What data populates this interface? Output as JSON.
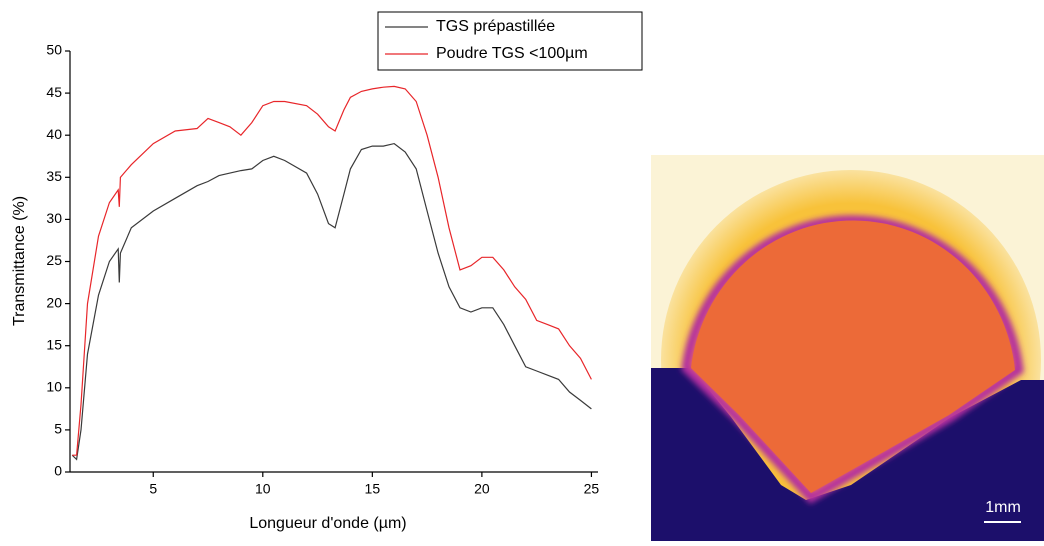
{
  "chart_data": {
    "type": "line",
    "x_label": "Longueur d'onde (µm)",
    "y_label": "Transmittance (%)",
    "x": [
      1.3,
      1.5,
      1.7,
      2.0,
      2.5,
      3.0,
      3.4,
      3.45,
      3.5,
      4.0,
      5.0,
      6.0,
      7.0,
      7.5,
      8.0,
      8.5,
      9.0,
      9.5,
      10.0,
      10.5,
      11.0,
      12.0,
      12.5,
      13.0,
      13.3,
      13.7,
      14.0,
      14.5,
      15.0,
      15.5,
      16.0,
      16.5,
      17.0,
      17.5,
      18.0,
      18.5,
      19.0,
      19.5,
      20.0,
      20.5,
      21.0,
      21.5,
      22.0,
      22.5,
      23.0,
      23.5,
      24.0,
      24.5,
      25.0
    ],
    "series": [
      {
        "name": "TGS prépastillée",
        "color": "#3a3a3a",
        "values": [
          2,
          1.5,
          5,
          14,
          21,
          25,
          26.5,
          22.5,
          26,
          29,
          31,
          32.5,
          34,
          34.5,
          35.2,
          35.5,
          35.8,
          36,
          37,
          37.5,
          37,
          35.5,
          33,
          29.5,
          29,
          33,
          36,
          38.3,
          38.7,
          38.7,
          39,
          38,
          36,
          31,
          26,
          22,
          19.5,
          19,
          19.5,
          19.5,
          17.5,
          15,
          12.5,
          12,
          11.5,
          11,
          9.5,
          8.5,
          7.5
        ]
      },
      {
        "name": "Poudre TGS <100µm",
        "color": "#e8262a",
        "values": [
          2,
          2,
          8,
          20,
          28,
          32,
          33.5,
          31.5,
          35,
          36.5,
          39,
          40.5,
          40.8,
          42,
          41.5,
          41,
          40,
          41.5,
          43.5,
          44,
          44,
          43.5,
          42.5,
          41,
          40.5,
          43,
          44.5,
          45.2,
          45.5,
          45.7,
          45.8,
          45.5,
          44,
          40,
          35,
          29,
          24,
          24.5,
          25.5,
          25.5,
          24,
          22,
          20.5,
          18,
          17.5,
          17,
          15,
          13.5,
          11
        ]
      }
    ],
    "xlim": [
      1.2,
      25.3
    ],
    "xticks": [
      5,
      10,
      15,
      20,
      25
    ],
    "ylim": [
      0,
      50
    ],
    "yticks": [
      0,
      5,
      10,
      15,
      20,
      25,
      30,
      35,
      40,
      45,
      50
    ],
    "grid": false
  },
  "image": {
    "scale_label": "1mm"
  }
}
